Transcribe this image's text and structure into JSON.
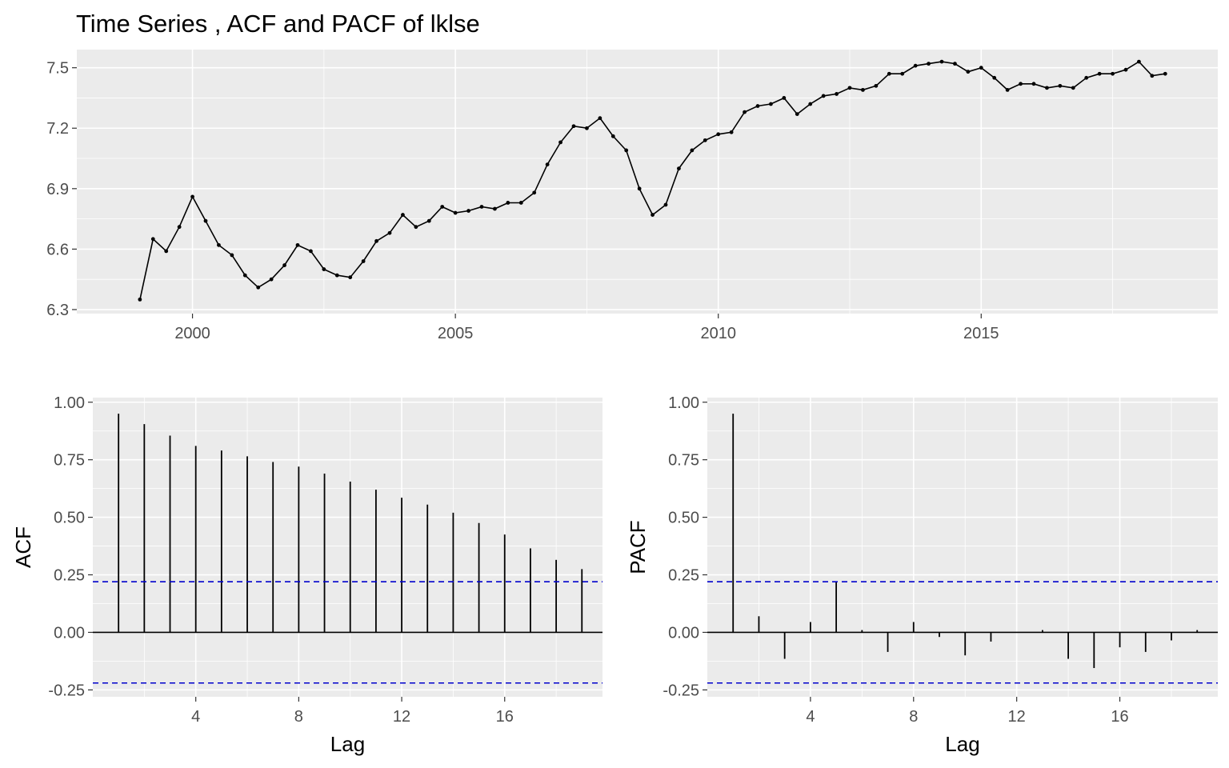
{
  "title": "Time Series , ACF and PACF of lklse",
  "chart_data": [
    {
      "type": "line",
      "x_start": 1999.0,
      "x_step": 0.25,
      "values": [
        6.35,
        6.65,
        6.59,
        6.71,
        6.86,
        6.74,
        6.62,
        6.57,
        6.47,
        6.41,
        6.45,
        6.52,
        6.62,
        6.59,
        6.5,
        6.47,
        6.46,
        6.54,
        6.64,
        6.68,
        6.77,
        6.71,
        6.74,
        6.81,
        6.78,
        6.79,
        6.81,
        6.8,
        6.83,
        6.83,
        6.88,
        7.02,
        7.13,
        7.21,
        7.2,
        7.25,
        7.16,
        7.09,
        6.9,
        6.77,
        6.82,
        7.0,
        7.09,
        7.14,
        7.17,
        7.18,
        7.28,
        7.31,
        7.32,
        7.35,
        7.27,
        7.32,
        7.36,
        7.37,
        7.4,
        7.39,
        7.41,
        7.47,
        7.47,
        7.51,
        7.52,
        7.53,
        7.52,
        7.48,
        7.5,
        7.45,
        7.39,
        7.42,
        7.42,
        7.4,
        7.41,
        7.4,
        7.45,
        7.47,
        7.47,
        7.49,
        7.53,
        7.46,
        7.47
      ],
      "xlim": [
        1997.8,
        2019.5
      ],
      "ylim": [
        6.28,
        7.59
      ],
      "x_ticks": [
        2000,
        2005,
        2010,
        2015
      ],
      "x_tick_labels": [
        "2000",
        "2005",
        "2010",
        "2015"
      ],
      "y_ticks": [
        6.3,
        6.6,
        6.9,
        7.2,
        7.5
      ],
      "y_tick_labels": [
        "6.3",
        "6.6",
        "6.9",
        "7.2",
        "7.5"
      ],
      "xlabel": "",
      "ylabel": "",
      "grid": true
    },
    {
      "type": "bar",
      "lags": [
        1,
        2,
        3,
        4,
        5,
        6,
        7,
        8,
        9,
        10,
        11,
        12,
        13,
        14,
        15,
        16,
        17,
        18,
        19
      ],
      "values": [
        0.95,
        0.905,
        0.855,
        0.81,
        0.79,
        0.765,
        0.74,
        0.72,
        0.69,
        0.655,
        0.62,
        0.585,
        0.555,
        0.52,
        0.475,
        0.425,
        0.365,
        0.315,
        0.275
      ],
      "ci": 0.22,
      "xlim": [
        0.0,
        19.8
      ],
      "ylim": [
        -0.28,
        1.02
      ],
      "x_ticks": [
        4,
        8,
        12,
        16
      ],
      "x_tick_labels": [
        "4",
        "8",
        "12",
        "16"
      ],
      "y_ticks": [
        -0.25,
        0,
        0.25,
        0.5,
        0.75,
        1
      ],
      "y_tick_labels": [
        "-0.25",
        "0.00",
        "0.25",
        "0.50",
        "0.75",
        "1.00"
      ],
      "xlabel": "Lag",
      "ylabel": "ACF",
      "grid": true
    },
    {
      "type": "bar",
      "lags": [
        1,
        2,
        3,
        4,
        5,
        6,
        7,
        8,
        9,
        10,
        11,
        12,
        13,
        14,
        15,
        16,
        17,
        18,
        19
      ],
      "values": [
        0.95,
        0.07,
        -0.115,
        0.045,
        0.22,
        0.01,
        -0.085,
        0.045,
        -0.02,
        -0.1,
        -0.04,
        0.0,
        0.01,
        -0.115,
        -0.155,
        -0.065,
        -0.085,
        -0.035,
        0.01
      ],
      "ci": 0.22,
      "xlim": [
        0.0,
        19.8
      ],
      "ylim": [
        -0.28,
        1.02
      ],
      "x_ticks": [
        4,
        8,
        12,
        16
      ],
      "x_tick_labels": [
        "4",
        "8",
        "12",
        "16"
      ],
      "y_ticks": [
        -0.25,
        0,
        0.25,
        0.5,
        0.75,
        1
      ],
      "y_tick_labels": [
        "-0.25",
        "0.00",
        "0.25",
        "0.50",
        "0.75",
        "1.00"
      ],
      "xlabel": "Lag",
      "ylabel": "PACF",
      "grid": true
    }
  ]
}
